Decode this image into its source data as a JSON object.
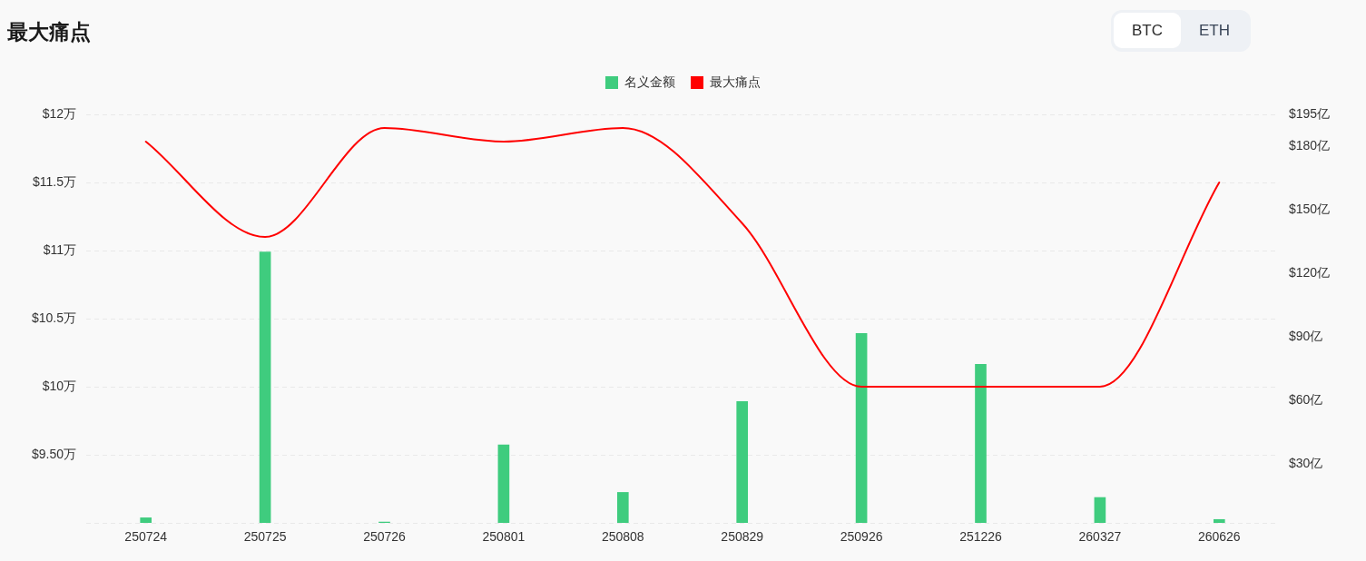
{
  "chart_data": {
    "type": "bar",
    "title": "最大痛点",
    "annotations": [
      "BTC",
      "ETH"
    ],
    "categories": [
      "250724",
      "250725",
      "250726",
      "250801",
      "250808",
      "250829",
      "250926",
      "251226",
      "260327",
      "260626"
    ],
    "series": [
      {
        "name": "名义金额",
        "axis": "y2",
        "color": "#3fcc7e",
        "values": [
          4.4,
          130,
          2.4,
          38.9,
          16.4,
          59.3,
          91.5,
          76.9,
          14,
          3.6
        ]
      },
      {
        "name": "最大痛点",
        "type": "line",
        "color": "#ff0000",
        "values": [
          11.8,
          11.1,
          11.9,
          11.8,
          11.9,
          11.2,
          10,
          10,
          10,
          11.5
        ]
      }
    ],
    "ylim": [
      9,
      12
    ],
    "yticks": [
      {
        "value": 9,
        "label": null
      },
      {
        "value": 9.5,
        "label": "$9.50万"
      },
      {
        "value": 10,
        "label": "$10万"
      },
      {
        "value": 10.5,
        "label": "$10.5万"
      },
      {
        "value": 11,
        "label": "$11万"
      },
      {
        "value": 11.5,
        "label": "$11.5万"
      },
      {
        "value": 12,
        "label": "$12万"
      }
    ],
    "y2lim": [
      2,
      195
    ],
    "y2ticks": [
      {
        "value": 30,
        "label": "$30亿"
      },
      {
        "value": 60,
        "label": "$60亿"
      },
      {
        "value": 90,
        "label": "$90亿"
      },
      {
        "value": 120,
        "label": "$120亿"
      },
      {
        "value": 150,
        "label": "$150亿"
      },
      {
        "value": 180,
        "label": "$180亿"
      },
      {
        "value": 195,
        "label": "$195亿"
      }
    ],
    "grid": "y",
    "legend": "top",
    "marker": "none"
  }
}
